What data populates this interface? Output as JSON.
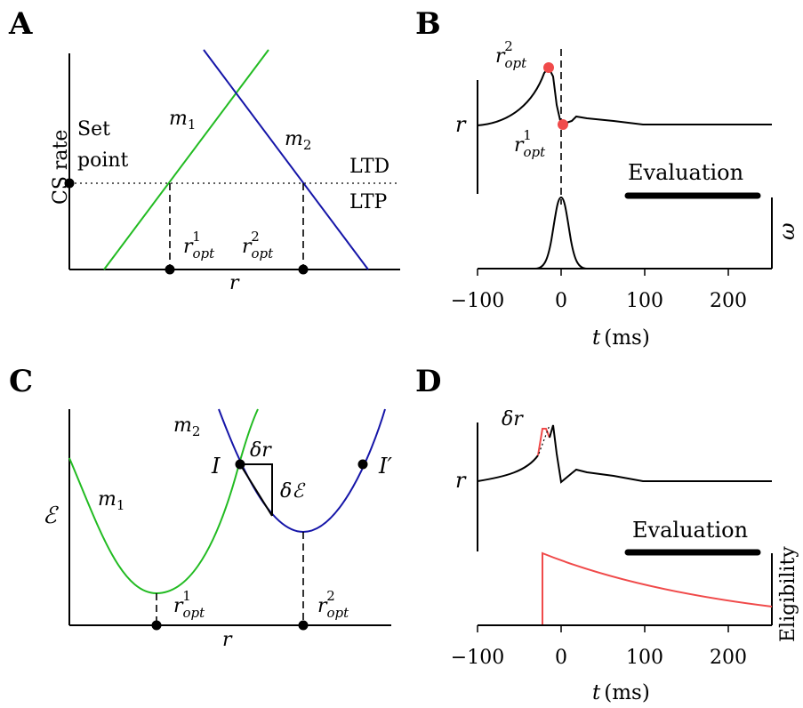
{
  "panels": {
    "a": {
      "letter": "A",
      "y_axis_label": "CS rate",
      "x_axis_label": "r",
      "set_point_line1": "Set",
      "set_point_line2": "point",
      "curve1_label": "m",
      "curve1_sub": "1",
      "curve2_label": "m",
      "curve2_sub": "2",
      "ltd_label": "LTD",
      "ltp_label": "LTP",
      "ropt1": "r",
      "ropt1_sub": "opt",
      "ropt1_sup": "1",
      "ropt2": "r",
      "ropt2_sub": "opt",
      "ropt2_sup": "2"
    },
    "b": {
      "letter": "B",
      "y_axis_label": "r",
      "right_axis_label": "ω",
      "evaluation_label": "Evaluation",
      "ropt2": "r",
      "ropt2_sub": "opt",
      "ropt2_sup": "2",
      "ropt1": "r",
      "ropt1_sub": "opt",
      "ropt1_sup": "1",
      "x_ticks": [
        "−100",
        "0",
        "100",
        "200"
      ],
      "x_axis_label_var": "t",
      "x_axis_label_unit": "(ms)"
    },
    "c": {
      "letter": "C",
      "y_axis_label": "ℰ",
      "x_axis_label": "r",
      "curve1_label": "m",
      "curve1_sub": "1",
      "curve2_label": "m",
      "curve2_sub": "2",
      "point_i": "I",
      "point_i_prime": "I′",
      "delta_r": "δr",
      "delta_e": "δℰ",
      "ropt1": "r",
      "ropt1_sub": "opt",
      "ropt1_sup": "1",
      "ropt2": "r",
      "ropt2_sub": "opt",
      "ropt2_sup": "2"
    },
    "d": {
      "letter": "D",
      "y_axis_label": "r",
      "right_axis_label": "Eligibility",
      "evaluation_label": "Evaluation",
      "delta_r": "δr",
      "x_ticks": [
        "−100",
        "0",
        "100",
        "200"
      ],
      "x_axis_label_var": "t",
      "x_axis_label_unit": "(ms)"
    }
  },
  "colors": {
    "green": "#22bb22",
    "blue": "#1515a8",
    "red": "#f04a4a",
    "black": "#000000"
  }
}
